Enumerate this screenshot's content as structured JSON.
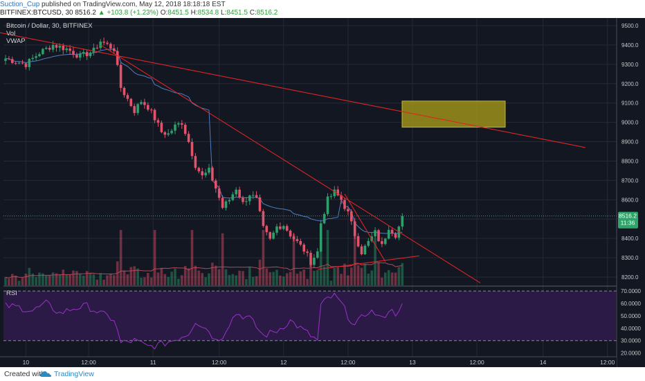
{
  "header": {
    "author": "Suction_Cup",
    "published_text": "published on TradingView.com, May 12, 2018 18:18:18 EST",
    "symbol": "BITFINEX:BTCUSD, 30",
    "last": "8516.2",
    "change_arrow": "▲",
    "change": "+103.8 (+1.23%)",
    "o_label": "O:",
    "o_value": "8451.5",
    "h_label": "H:",
    "h_value": "8534.8",
    "l_label": "L:",
    "l_value": "8451.5",
    "c_label": "C:",
    "c_value": "8516.2"
  },
  "legend": {
    "title": "Bitcoin / Dollar, 30, BITFINEX",
    "vol": "Vol",
    "vwap": "VWAP"
  },
  "rsi_label": "RSI",
  "price_badge": {
    "price": "8516.2",
    "timer": "11:36"
  },
  "footer": {
    "created_with": "Created with",
    "brand": "TradingView"
  },
  "colors": {
    "background": "#131722",
    "grid": "#262a36",
    "up": "#26a69a",
    "up_candle": "#2e9e6a",
    "down_candle": "#e0536b",
    "trendline": "#e02424",
    "vwap": "#4f7fbf",
    "rsi_line": "#9b32c8",
    "rsi_band": "#2a1a45",
    "target_box": "#a89a18",
    "price_badge": "#2ea36a"
  },
  "chart_data": {
    "type": "candlestick",
    "symbol": "BITFINEX:BTCUSD",
    "interval": "30",
    "x_ticks": [
      "10",
      "12:00",
      "11",
      "12:00",
      "12",
      "12:00",
      "13",
      "12:00",
      "14",
      "12:00"
    ],
    "y_ticks": [
      9500,
      9400,
      9300,
      9200,
      9100,
      9000,
      8900,
      8800,
      8700,
      8600,
      8500,
      8400,
      8300,
      8200
    ],
    "ylim": [
      8150,
      9525
    ],
    "rsi_ticks": [
      "70.0000",
      "60.0000",
      "50.0000",
      "40.0000",
      "30.0000",
      "20.0000"
    ],
    "rsi_levels": [
      70,
      30
    ],
    "rsi_ylim": [
      17,
      74
    ],
    "last_price": 8516.2,
    "price_path": [
      [
        0,
        9330
      ],
      [
        6,
        9300
      ],
      [
        10,
        9360
      ],
      [
        14,
        9400
      ],
      [
        18,
        9380
      ],
      [
        22,
        9340
      ],
      [
        26,
        9370
      ],
      [
        28,
        9420
      ],
      [
        32,
        9380
      ],
      [
        34,
        9180
      ],
      [
        36,
        9120
      ],
      [
        38,
        9060
      ],
      [
        40,
        9110
      ],
      [
        42,
        9080
      ],
      [
        44,
        9020
      ],
      [
        46,
        8950
      ],
      [
        48,
        8940
      ],
      [
        50,
        8980
      ],
      [
        52,
        9000
      ],
      [
        54,
        8900
      ],
      [
        56,
        8780
      ],
      [
        58,
        8720
      ],
      [
        60,
        8750
      ],
      [
        62,
        8660
      ],
      [
        64,
        8560
      ],
      [
        66,
        8600
      ],
      [
        68,
        8660
      ],
      [
        70,
        8580
      ],
      [
        72,
        8630
      ],
      [
        74,
        8600
      ],
      [
        76,
        8450
      ],
      [
        78,
        8390
      ],
      [
        80,
        8460
      ],
      [
        82,
        8470
      ],
      [
        84,
        8420
      ],
      [
        86,
        8380
      ],
      [
        88,
        8340
      ],
      [
        90,
        8280
      ],
      [
        92,
        8330
      ],
      [
        93,
        8480
      ],
      [
        95,
        8600
      ],
      [
        97,
        8640
      ],
      [
        99,
        8600
      ],
      [
        101,
        8530
      ],
      [
        103,
        8420
      ],
      [
        105,
        8330
      ],
      [
        107,
        8380
      ],
      [
        109,
        8430
      ],
      [
        111,
        8360
      ],
      [
        113,
        8460
      ],
      [
        115,
        8420
      ],
      [
        116,
        8460
      ],
      [
        117,
        8516.2
      ]
    ],
    "rsi_path": [
      [
        0,
        58
      ],
      [
        4,
        57
      ],
      [
        8,
        54
      ],
      [
        12,
        60
      ],
      [
        16,
        52
      ],
      [
        20,
        56
      ],
      [
        24,
        58
      ],
      [
        28,
        52
      ],
      [
        32,
        47
      ],
      [
        34,
        28
      ],
      [
        38,
        30
      ],
      [
        42,
        25
      ],
      [
        46,
        27
      ],
      [
        50,
        31
      ],
      [
        54,
        36
      ],
      [
        56,
        46
      ],
      [
        58,
        42
      ],
      [
        60,
        38
      ],
      [
        62,
        30
      ],
      [
        64,
        34
      ],
      [
        66,
        44
      ],
      [
        68,
        52
      ],
      [
        72,
        48
      ],
      [
        76,
        34
      ],
      [
        80,
        38
      ],
      [
        84,
        46
      ],
      [
        88,
        38
      ],
      [
        92,
        30
      ],
      [
        93,
        58
      ],
      [
        95,
        64
      ],
      [
        97,
        66
      ],
      [
        99,
        60
      ],
      [
        101,
        50
      ],
      [
        103,
        42
      ],
      [
        105,
        48
      ],
      [
        107,
        54
      ],
      [
        109,
        52
      ],
      [
        111,
        47
      ],
      [
        113,
        55
      ],
      [
        115,
        52
      ],
      [
        117,
        60
      ]
    ],
    "target_zone": {
      "from": 9110,
      "to": 8975
    },
    "trendlines": [
      {
        "from": [
          -5,
          9475
        ],
        "to": [
          171,
          8870
        ]
      },
      {
        "from": [
          28,
          9400
        ],
        "to": [
          140,
          8170
        ]
      },
      {
        "from": [
          100,
          8630
        ],
        "to": [
          112,
          8280
        ]
      },
      {
        "from": [
          92,
          8240
        ],
        "to": [
          122,
          8310
        ]
      }
    ]
  }
}
